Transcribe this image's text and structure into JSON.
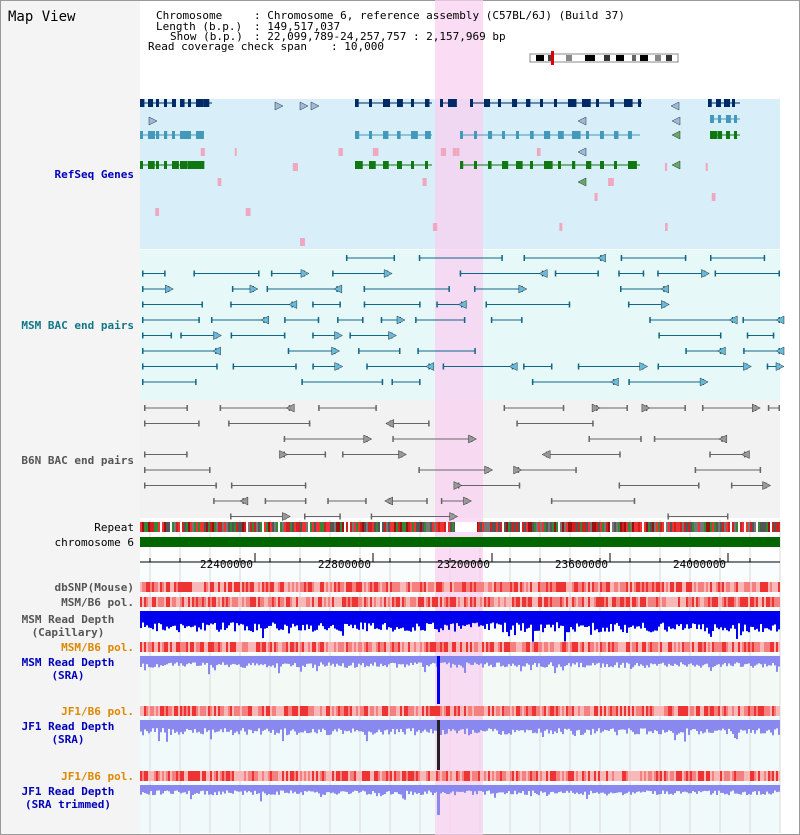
{
  "page": {
    "title": "Map View"
  },
  "info": {
    "chromosome_label": "Chromosome",
    "chromosome_value": ": Chromosome 6, reference assembly (C57BL/6J) (Build 37)",
    "length_label": "Length (b.p.)",
    "length_value": ": 149,517,037",
    "show_label": "Show (b.p.)",
    "show_value": ": 22,099,789-24,257,757 : 2,157,969 bp",
    "coverage_label": "Read coverage check span",
    "coverage_value": ": 10,000"
  },
  "tracks": {
    "refseq": "RefSeq Genes",
    "msm_bac": "MSM BAC end pairs",
    "b6n_bac": "B6N BAC end pairs",
    "repeat": "Repeat",
    "chromosome": "chromosome 6",
    "dbsnp": "dbSNP(Mouse)",
    "msm_b6_pol_1": "MSM/B6 pol.",
    "msm_depth_cap": "MSM Read Depth\n(Capillary)",
    "msm_b6_pol_2": "MSM/B6 pol.",
    "msm_depth_sra": "MSM Read Depth\n(SRA)",
    "jf1_b6_pol_1": "JF1/B6 pol.",
    "jf1_depth_sra": "JF1 Read Depth\n(SRA)",
    "jf1_b6_pol_2": "JF1/B6 pol.",
    "jf1_depth_trim": "JF1 Read Depth\n(SRA trimmed)"
  },
  "axis": {
    "ticks": [
      "22400000",
      "22800000",
      "23200000",
      "23600000",
      "24000000"
    ]
  },
  "colors": {
    "refseq_bg": "#d8eef8",
    "msm_bg": "#e6f8f8",
    "b6n_bg": "#f2f2f2",
    "highlight": "#f8d0f0",
    "gene_dark": "#002a66",
    "gene_mid": "#4499bb",
    "gene_green": "#117711",
    "msm_line": "#116688",
    "b6n_line": "#666666",
    "chromosome_bar": "#006600",
    "depth_blue": "#0000ee",
    "depth_light": "#8888ee",
    "snp_red": "#ee4444"
  }
}
